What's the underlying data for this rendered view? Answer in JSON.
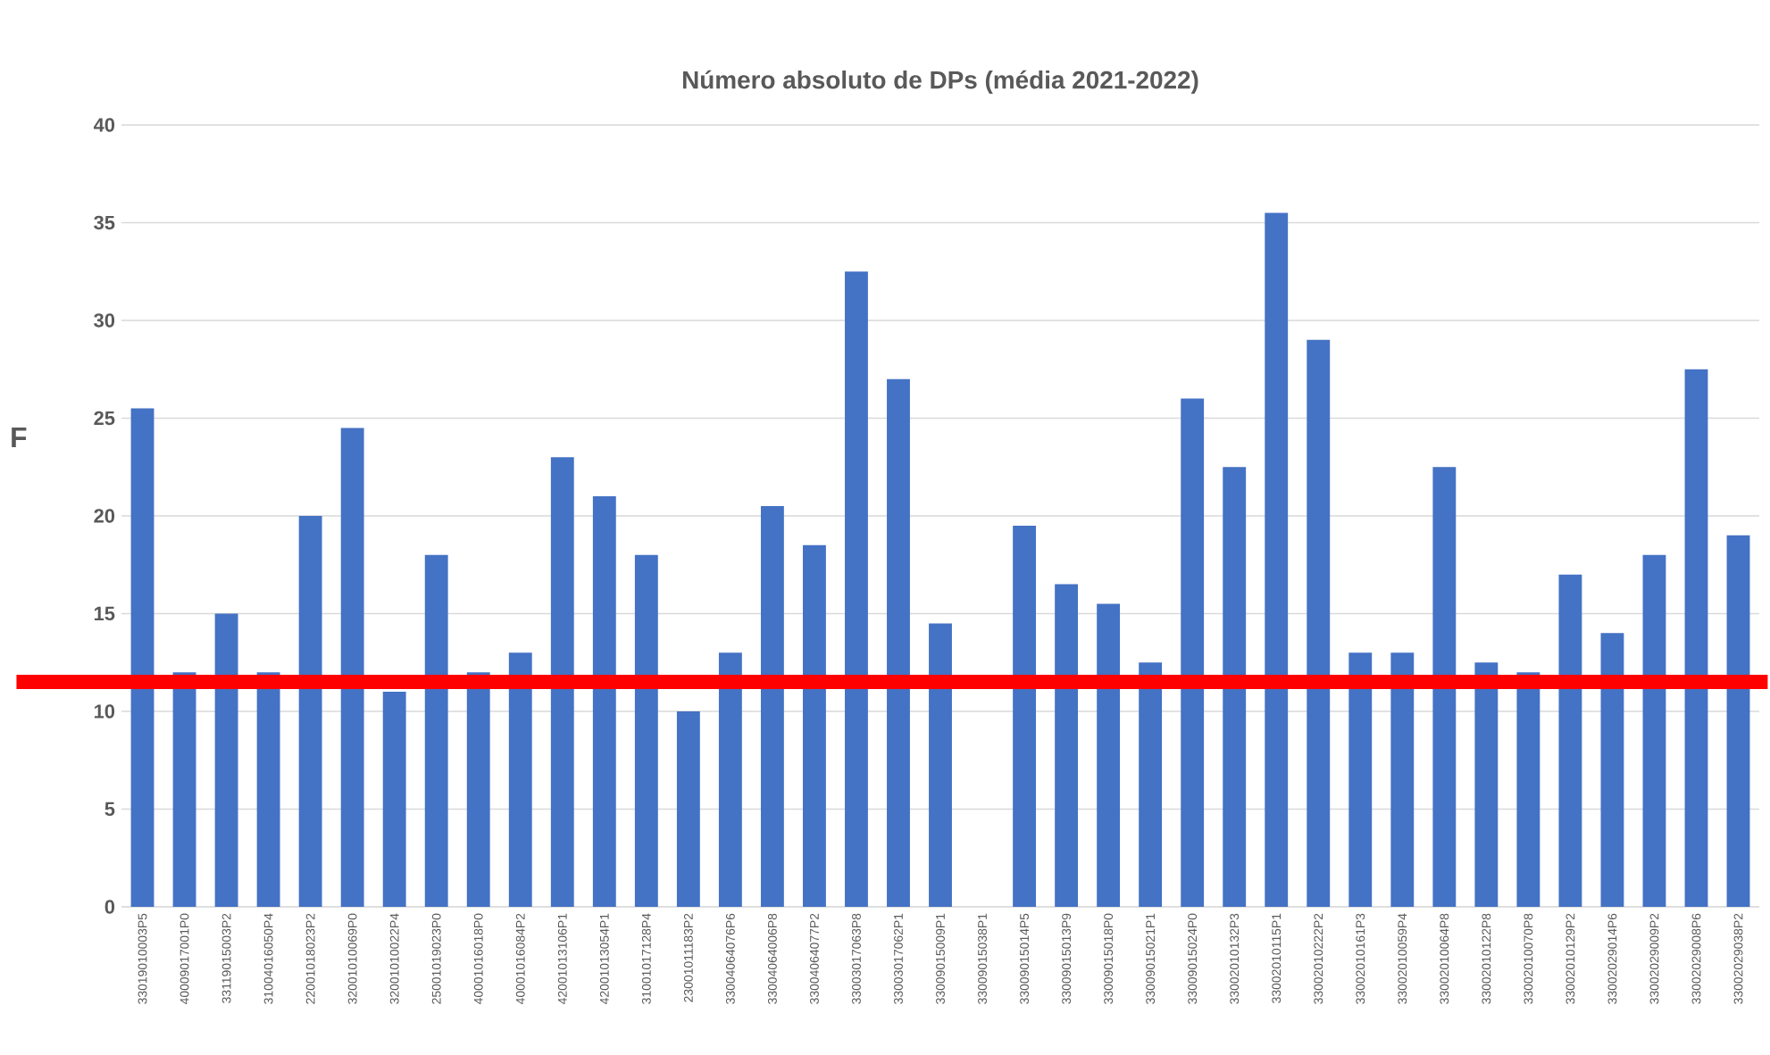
{
  "chart_data": {
    "type": "bar",
    "title": "Número absoluto de DPs (média 2021-2022)",
    "categories": [
      "33019010003P5",
      "40009017001P0",
      "33119015003P2",
      "31004016050P4",
      "22001018023P2",
      "32001010069P0",
      "32001010022P4",
      "25001019023P0",
      "40001016018P0",
      "40001016084P2",
      "42001013106P1",
      "42001013054P1",
      "31001017128P4",
      "23001011183P2",
      "33004064076P6",
      "33004064006P8",
      "33004064077P2",
      "33003017063P8",
      "33003017062P1",
      "33009015009P1",
      "33009015038P1",
      "33009015014P5",
      "33009015013P9",
      "33009015018P0",
      "33009015021P1",
      "33009015024P0",
      "33002010132P3",
      "33002010115P1",
      "33002010222P2",
      "33002010161P3",
      "33002010059P4",
      "33002010064P8",
      "33002010122P8",
      "33002010070P8",
      "33002010129P2",
      "33002029014P6",
      "33002029009P2",
      "33002029008P6",
      "33002029038P2"
    ],
    "values": [
      25.5,
      12,
      15,
      12,
      20,
      24.5,
      11,
      18,
      12,
      13,
      23,
      21,
      18,
      10,
      13,
      20.5,
      18.5,
      32.5,
      27,
      14.5,
      null,
      19.5,
      16.5,
      15.5,
      12.5,
      26,
      22.5,
      35.5,
      29,
      13,
      13,
      22.5,
      12.5,
      12,
      17,
      14,
      18,
      27.5,
      19
    ],
    "color": "#4472c4",
    "ylim": [
      0,
      40
    ],
    "yticks": [
      0,
      5,
      10,
      15,
      20,
      25,
      30,
      35,
      40
    ],
    "grid": "y",
    "ref_lines": [
      {
        "axis": "y",
        "value": 11.5,
        "color": "#ff0000"
      }
    ],
    "annotations": [
      "F"
    ]
  }
}
